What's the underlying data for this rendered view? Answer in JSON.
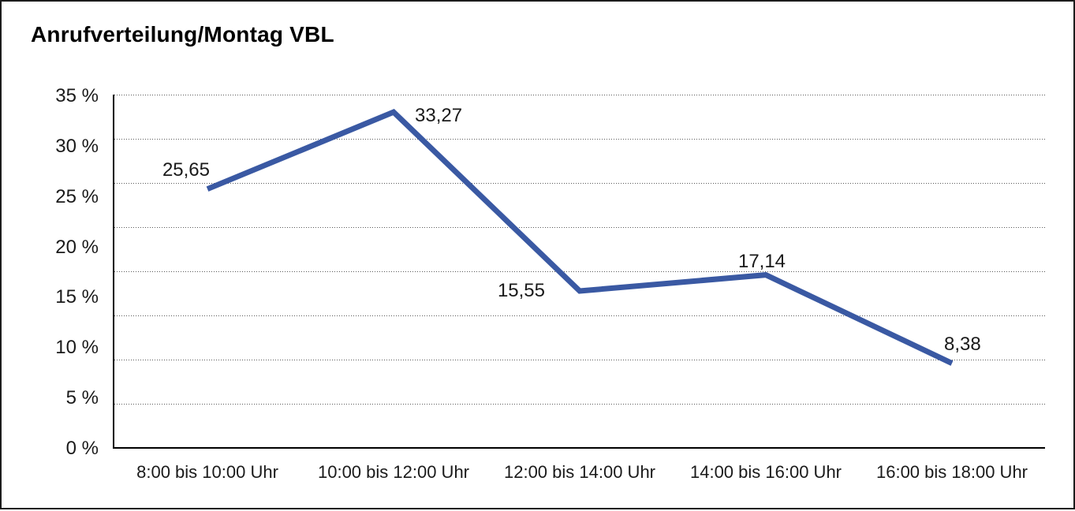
{
  "title": "Anrufverteilung/Montag VBL",
  "colors": {
    "series_line": "#3A59A3",
    "axis": "#000000",
    "gridline": "#5a5a5a",
    "frame_border": "#1c1c1c",
    "background": "#ffffff",
    "text": "#1a1a1a"
  },
  "chart_data": {
    "type": "line",
    "title": "Anrufverteilung/Montag VBL",
    "categories": [
      "8:00 bis 10:00 Uhr",
      "10:00 bis 12:00 Uhr",
      "12:00 bis 14:00 Uhr",
      "14:00 bis 16:00 Uhr",
      "16:00 bis 18:00 Uhr"
    ],
    "values": [
      25.65,
      33.27,
      15.55,
      17.14,
      8.38
    ],
    "value_labels": [
      "25,65",
      "33,27",
      "15,55",
      "17,14",
      "8,38"
    ],
    "unit": "%",
    "xlabel": "",
    "ylabel": "",
    "ylim": [
      0,
      35
    ],
    "y_tick_values": [
      35,
      30,
      25,
      20,
      15,
      10,
      5,
      0
    ],
    "y_tick_labels": [
      "35 %",
      "30 %",
      "25 %",
      "20 %",
      "15 %",
      "10 %",
      "5 %",
      "0 %"
    ],
    "grid": {
      "horizontal": true,
      "style": "dotted",
      "count": 9
    },
    "legend": "none",
    "markers": "none"
  }
}
